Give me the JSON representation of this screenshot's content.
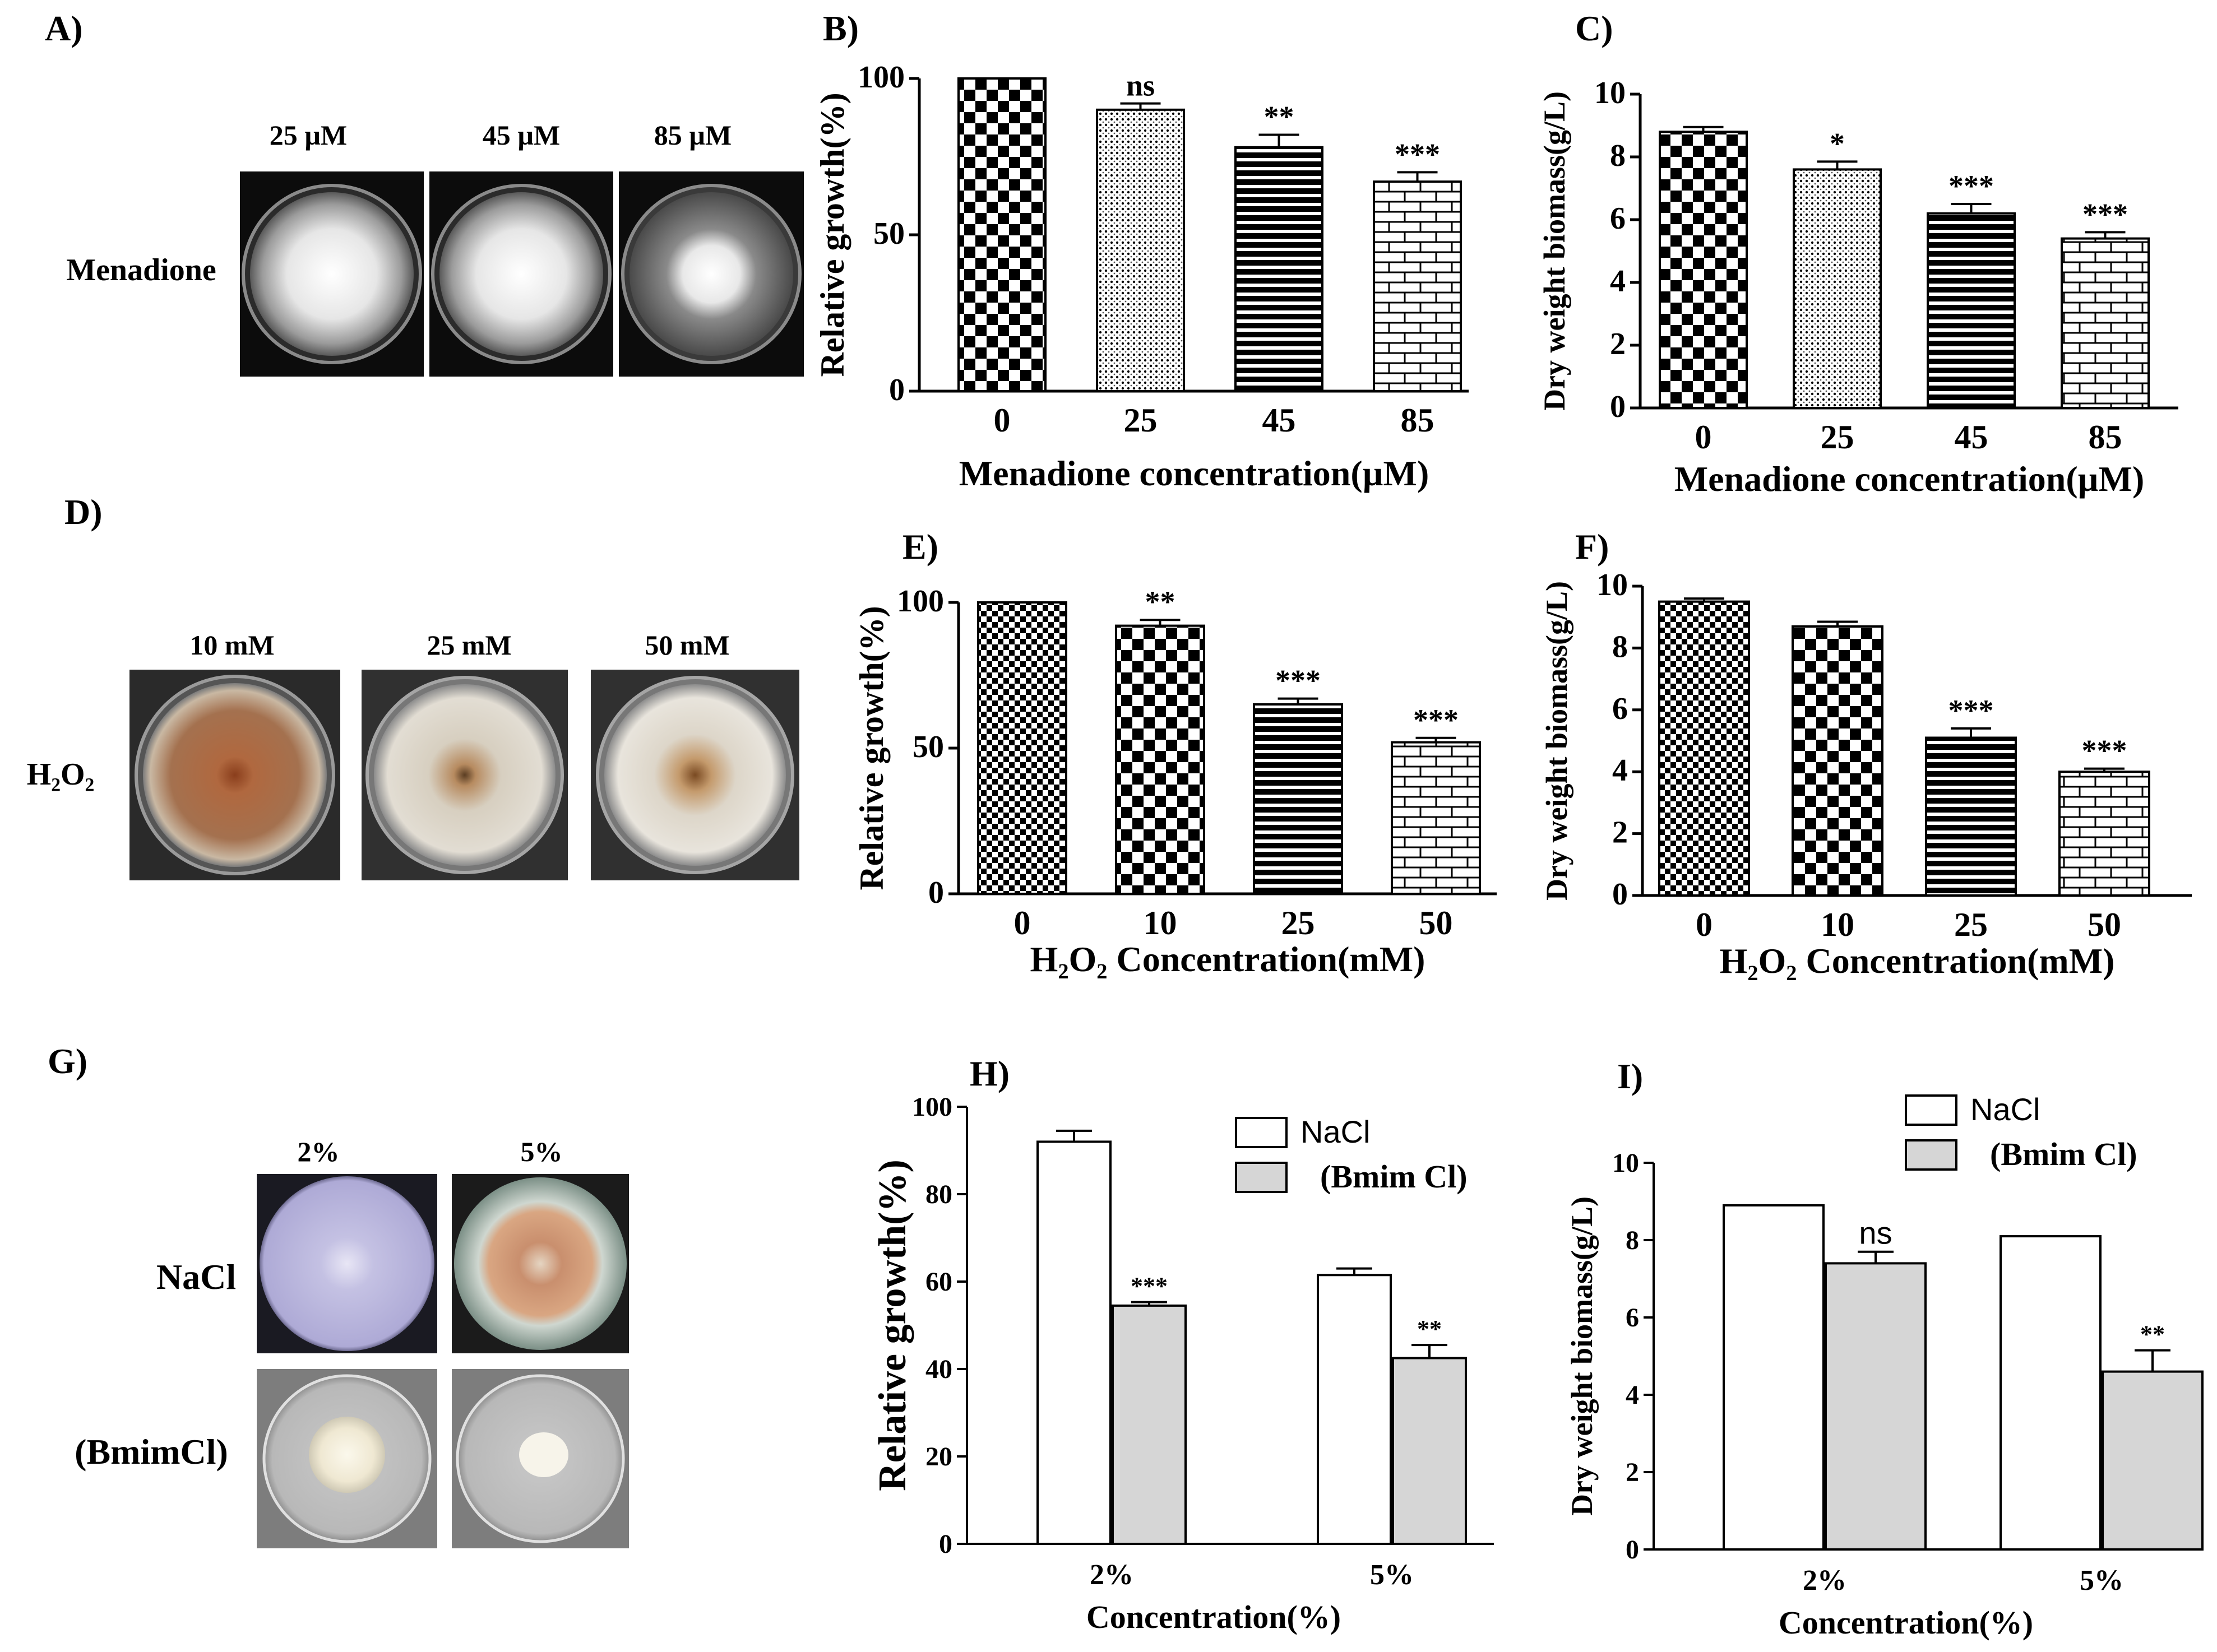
{
  "colors": {
    "menadione_dish_bg": "#0c0c0c",
    "menadione_colony": "#e9e9e9",
    "h2o2_dish_bg": "#2a2a2a",
    "h2o2_colony_brown": "#a86a42",
    "h2o2_colony_pale": "#d9d3c6",
    "nacl_colony_lilac": "#b9b6dc",
    "bmim_dish_bg": "#7d7d7d",
    "bmim_colony": "#f4f0e2",
    "bar_gray": "#d6d6d6"
  },
  "panels": {
    "A": {
      "label": "A)",
      "row_label": "Menadione",
      "conditions": [
        "25 µM",
        "45 µM",
        "85 µM"
      ]
    },
    "D": {
      "label": "D)",
      "row_label": "H₂O₂",
      "conditions": [
        "10 mM",
        "25 mM",
        "50 mM"
      ]
    },
    "G": {
      "label": "G)",
      "conditions": [
        "2%",
        "5%"
      ],
      "row_labels": [
        "NaCl",
        "(BmimCl)"
      ]
    }
  },
  "chart_data": [
    {
      "id": "B",
      "label": "B)",
      "type": "bar",
      "categories": [
        "0",
        "25",
        "45",
        "85"
      ],
      "values": [
        100,
        90,
        78,
        67
      ],
      "errors": [
        0,
        2,
        4,
        3
      ],
      "significance": [
        "",
        "ns",
        "**",
        "***"
      ],
      "ylabel": "Relative growth(%)",
      "xlabel": "Menadione concentration(µM)",
      "ylim": [
        0,
        100
      ],
      "yticks": [
        "0",
        "50",
        "100"
      ],
      "patterns": [
        "checker",
        "dots",
        "hlines",
        "bricks"
      ]
    },
    {
      "id": "C",
      "label": "C)",
      "type": "bar",
      "categories": [
        "0",
        "25",
        "45",
        "85"
      ],
      "values": [
        8.8,
        7.6,
        6.2,
        5.4
      ],
      "errors": [
        0.15,
        0.25,
        0.3,
        0.2
      ],
      "significance": [
        "",
        "*",
        "***",
        "***"
      ],
      "ylabel": "Dry weight biomass(g/L)",
      "xlabel": "Menadione concentration(µM)",
      "ylim": [
        0,
        10
      ],
      "yticks": [
        "0",
        "2",
        "4",
        "6",
        "8",
        "10"
      ],
      "patterns": [
        "checker",
        "dots",
        "hlines",
        "bricks"
      ]
    },
    {
      "id": "E",
      "label": "E)",
      "type": "bar",
      "categories": [
        "0",
        "10",
        "25",
        "50"
      ],
      "values": [
        100,
        92,
        65,
        52
      ],
      "errors": [
        0,
        2,
        2,
        1.5
      ],
      "significance": [
        "",
        "**",
        "***",
        "***"
      ],
      "ylabel": "Relative growth(%)",
      "xlabel": "H₂O₂ Concentration(mM)",
      "ylim": [
        0,
        100
      ],
      "yticks": [
        "0",
        "50",
        "100"
      ],
      "patterns": [
        "finechecker",
        "checker",
        "hlines",
        "bricks"
      ]
    },
    {
      "id": "F",
      "label": "F)",
      "type": "bar",
      "categories": [
        "0",
        "10",
        "25",
        "50"
      ],
      "values": [
        9.5,
        8.7,
        5.1,
        4.0
      ],
      "errors": [
        0.1,
        0.15,
        0.3,
        0.1
      ],
      "significance": [
        "",
        "",
        "***",
        "***"
      ],
      "ylabel": "Dry weight biomass(g/L)",
      "xlabel": "H₂O₂ Concentration(mM)",
      "ylim": [
        0,
        10
      ],
      "yticks": [
        "0",
        "2",
        "4",
        "6",
        "8",
        "10"
      ],
      "patterns": [
        "finechecker",
        "checker",
        "hlines",
        "bricks"
      ]
    },
    {
      "id": "H",
      "label": "H)",
      "type": "bar",
      "categories": [
        "2%",
        "5%"
      ],
      "series": [
        {
          "name": "NaCl",
          "values": [
            92,
            61.5
          ],
          "errors": [
            2.5,
            1.5
          ],
          "significance": [
            "",
            ""
          ]
        },
        {
          "name": "(Bmim Cl)",
          "values": [
            54.5,
            42.5
          ],
          "errors": [
            0.8,
            3
          ],
          "significance": [
            "***",
            "**"
          ]
        }
      ],
      "ylabel": "Relative growth(%)",
      "xlabel": "Concentration(%)",
      "ylim": [
        0,
        100
      ],
      "yticks": [
        "0",
        "20",
        "40",
        "60",
        "80",
        "100"
      ],
      "legend": "top-right"
    },
    {
      "id": "I",
      "label": "I)",
      "type": "bar",
      "categories": [
        "2%",
        "5%"
      ],
      "series": [
        {
          "name": "NaCl",
          "values": [
            8.9,
            8.1
          ],
          "errors": [
            0,
            0
          ],
          "significance": [
            "",
            ""
          ]
        },
        {
          "name": "(Bmim Cl)",
          "values": [
            7.4,
            4.6
          ],
          "errors": [
            0.3,
            0.55
          ],
          "significance": [
            "ns",
            "**"
          ]
        }
      ],
      "ylabel": "Dry weight biomass(g/L)",
      "xlabel": "Concentration(%)",
      "ylim": [
        0,
        10
      ],
      "yticks": [
        "0",
        "2",
        "4",
        "6",
        "8",
        "10"
      ],
      "legend": "top-right"
    }
  ]
}
